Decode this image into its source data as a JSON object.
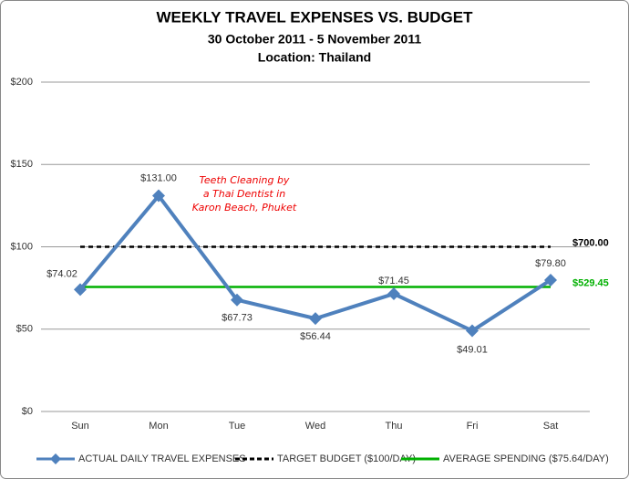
{
  "chart_data": {
    "type": "line",
    "title": "WEEKLY TRAVEL EXPENSES VS. BUDGET",
    "subtitle": "30 October 2011 - 5 November 2011",
    "subtitle2": "Location: Thailand",
    "categories": [
      "Sun",
      "Mon",
      "Tue",
      "Wed",
      "Thu",
      "Fri",
      "Sat"
    ],
    "ylim": [
      0,
      200
    ],
    "yticks": [
      {
        "value": 0,
        "label": "$0"
      },
      {
        "value": 50,
        "label": "$50"
      },
      {
        "value": 100,
        "label": "$100"
      },
      {
        "value": 150,
        "label": "$150"
      },
      {
        "value": 200,
        "label": "$200"
      }
    ],
    "grid": true,
    "legend": "bottom",
    "series": [
      {
        "name": "ACTUAL DAILY TRAVEL EXPENSES",
        "color": "#4f81bd",
        "style": "solid-diamond",
        "values": [
          74.02,
          131.0,
          67.73,
          56.44,
          71.45,
          49.01,
          79.8
        ],
        "value_labels": [
          "$74.02",
          "$131.00",
          "$67.73",
          "$56.44",
          "$71.45",
          "$49.01",
          "$79.80"
        ]
      },
      {
        "name": "TARGET BUDGET ($100/DAY)",
        "color": "#000000",
        "style": "dashed",
        "values": [
          100,
          100,
          100,
          100,
          100,
          100,
          100
        ],
        "total_label": "$700.00"
      },
      {
        "name": "AVERAGE SPENDING ($75.64/DAY)",
        "color": "#00b000",
        "style": "solid",
        "values": [
          75.64,
          75.64,
          75.64,
          75.64,
          75.64,
          75.64,
          75.64
        ],
        "total_label": "$529.45"
      }
    ],
    "annotation": [
      "Teeth Cleaning by",
      "a Thai Dentist in",
      "Karon Beach, Phuket"
    ]
  }
}
